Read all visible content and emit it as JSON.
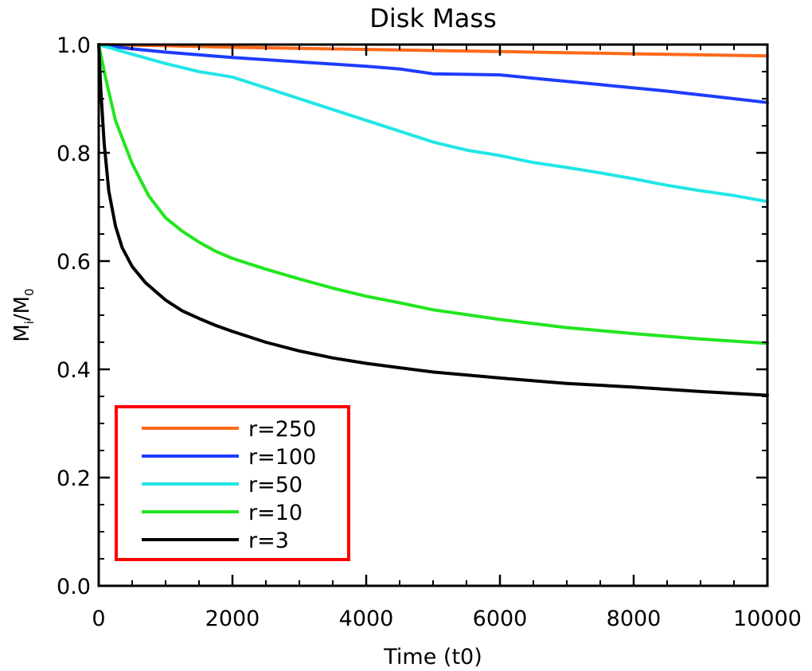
{
  "chart_data": {
    "type": "line",
    "title": "Disk Mass",
    "xlabel": "Time (t0)",
    "ylabel": {
      "main": "M",
      "sub1": "i",
      "sep": "/",
      "main2": "M",
      "sub2": "0"
    },
    "xlim": [
      0,
      10000
    ],
    "ylim": [
      0.0,
      1.0
    ],
    "xticks": [
      0,
      2000,
      4000,
      6000,
      8000,
      10000
    ],
    "xtick_labels": [
      "0",
      "2000",
      "4000",
      "6000",
      "8000",
      "10000"
    ],
    "yticks": [
      0.0,
      0.2,
      0.4,
      0.6,
      0.8,
      1.0
    ],
    "ytick_labels": [
      "0.0",
      "0.2",
      "0.4",
      "0.6",
      "0.8",
      "1.0"
    ],
    "grid": false,
    "legend_position": "bottom-left",
    "legend_border_color": "#ff0000",
    "series": [
      {
        "name": "r=250",
        "color": "#ff6a1a",
        "x": [
          0,
          1000,
          2000,
          3000,
          4000,
          5000,
          6000,
          7000,
          8000,
          9000,
          10000
        ],
        "values": [
          1.0,
          0.998,
          0.995,
          0.993,
          0.991,
          0.989,
          0.987,
          0.985,
          0.983,
          0.981,
          0.979
        ]
      },
      {
        "name": "r=100",
        "color": "#1f3cff",
        "x": [
          0,
          500,
          1000,
          1500,
          2000,
          2500,
          3000,
          3500,
          4000,
          4500,
          5000,
          5500,
          6000,
          6500,
          7000,
          7500,
          8000,
          8500,
          9000,
          9500,
          10000
        ],
        "values": [
          1.0,
          0.992,
          0.986,
          0.981,
          0.976,
          0.972,
          0.968,
          0.964,
          0.96,
          0.955,
          0.946,
          0.945,
          0.944,
          0.938,
          0.932,
          0.926,
          0.92,
          0.914,
          0.907,
          0.9,
          0.893
        ]
      },
      {
        "name": "r=50",
        "color": "#22e6e6",
        "x": [
          0,
          500,
          1000,
          1500,
          2000,
          2500,
          3000,
          3500,
          4000,
          4500,
          5000,
          5500,
          6000,
          6500,
          7000,
          7500,
          8000,
          8500,
          9000,
          9500,
          10000
        ],
        "values": [
          1.0,
          0.982,
          0.965,
          0.95,
          0.94,
          0.92,
          0.9,
          0.88,
          0.86,
          0.84,
          0.82,
          0.805,
          0.795,
          0.782,
          0.773,
          0.763,
          0.752,
          0.74,
          0.73,
          0.721,
          0.71
        ]
      },
      {
        "name": "r=10",
        "color": "#22e61f",
        "x": [
          0,
          100,
          250,
          500,
          750,
          1000,
          1250,
          1500,
          1750,
          2000,
          2500,
          3000,
          3500,
          4000,
          4500,
          5000,
          6000,
          7000,
          8000,
          9000,
          10000
        ],
        "values": [
          1.0,
          0.94,
          0.86,
          0.78,
          0.72,
          0.68,
          0.655,
          0.635,
          0.618,
          0.605,
          0.585,
          0.567,
          0.55,
          0.535,
          0.523,
          0.51,
          0.492,
          0.477,
          0.466,
          0.456,
          0.448
        ]
      },
      {
        "name": "r=3",
        "color": "#000000",
        "x": [
          0,
          30,
          80,
          150,
          250,
          350,
          500,
          700,
          1000,
          1250,
          1500,
          1750,
          2000,
          2500,
          3000,
          3500,
          4000,
          4500,
          5000,
          6000,
          7000,
          8000,
          9000,
          10000
        ],
        "values": [
          1.0,
          0.92,
          0.82,
          0.73,
          0.665,
          0.625,
          0.59,
          0.56,
          0.528,
          0.508,
          0.494,
          0.481,
          0.47,
          0.45,
          0.434,
          0.421,
          0.411,
          0.403,
          0.395,
          0.384,
          0.374,
          0.367,
          0.359,
          0.352
        ]
      }
    ]
  }
}
